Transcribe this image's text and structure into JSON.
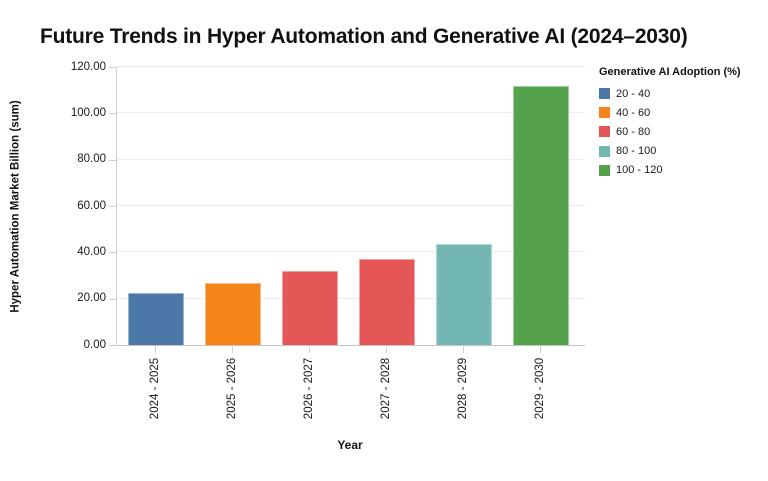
{
  "title": "Future Trends in Hyper Automation and Generative AI (2024–2030)",
  "chart_data": {
    "type": "bar",
    "title": "Future Trends in Hyper Automation and Generative AI (2024–2030)",
    "categories": [
      "2024 - 2025",
      "2025 - 2026",
      "2026 - 2027",
      "2027 - 2028",
      "2028 - 2029",
      "2029 - 2030"
    ],
    "values": [
      22.5,
      26.6,
      31.8,
      37.3,
      43.5,
      112
    ],
    "bar_bins": [
      "20 - 40",
      "40 - 60",
      "60 - 80",
      "60 - 80",
      "80 - 100",
      "100 - 120"
    ],
    "xlabel": "Year",
    "ylabel": "Hyper Automation Market Billion (sum)",
    "ylim": [
      0,
      120
    ],
    "yticks": [
      0,
      20,
      40,
      60,
      80,
      100,
      120
    ],
    "ytick_labels": [
      "0.00",
      "20.00",
      "40.00",
      "60.00",
      "80.00",
      "100.00",
      "120.00"
    ],
    "grid": true,
    "legend": {
      "title": "Generative AI Adoption (%)",
      "position": "right",
      "entries": [
        {
          "label": "20 - 40",
          "color": "#4c78a8"
        },
        {
          "label": "40 - 60",
          "color": "#f58518"
        },
        {
          "label": "60 - 80",
          "color": "#e45756"
        },
        {
          "label": "80 - 100",
          "color": "#72b7b2"
        },
        {
          "label": "100 - 120",
          "color": "#54a24b"
        }
      ]
    }
  }
}
